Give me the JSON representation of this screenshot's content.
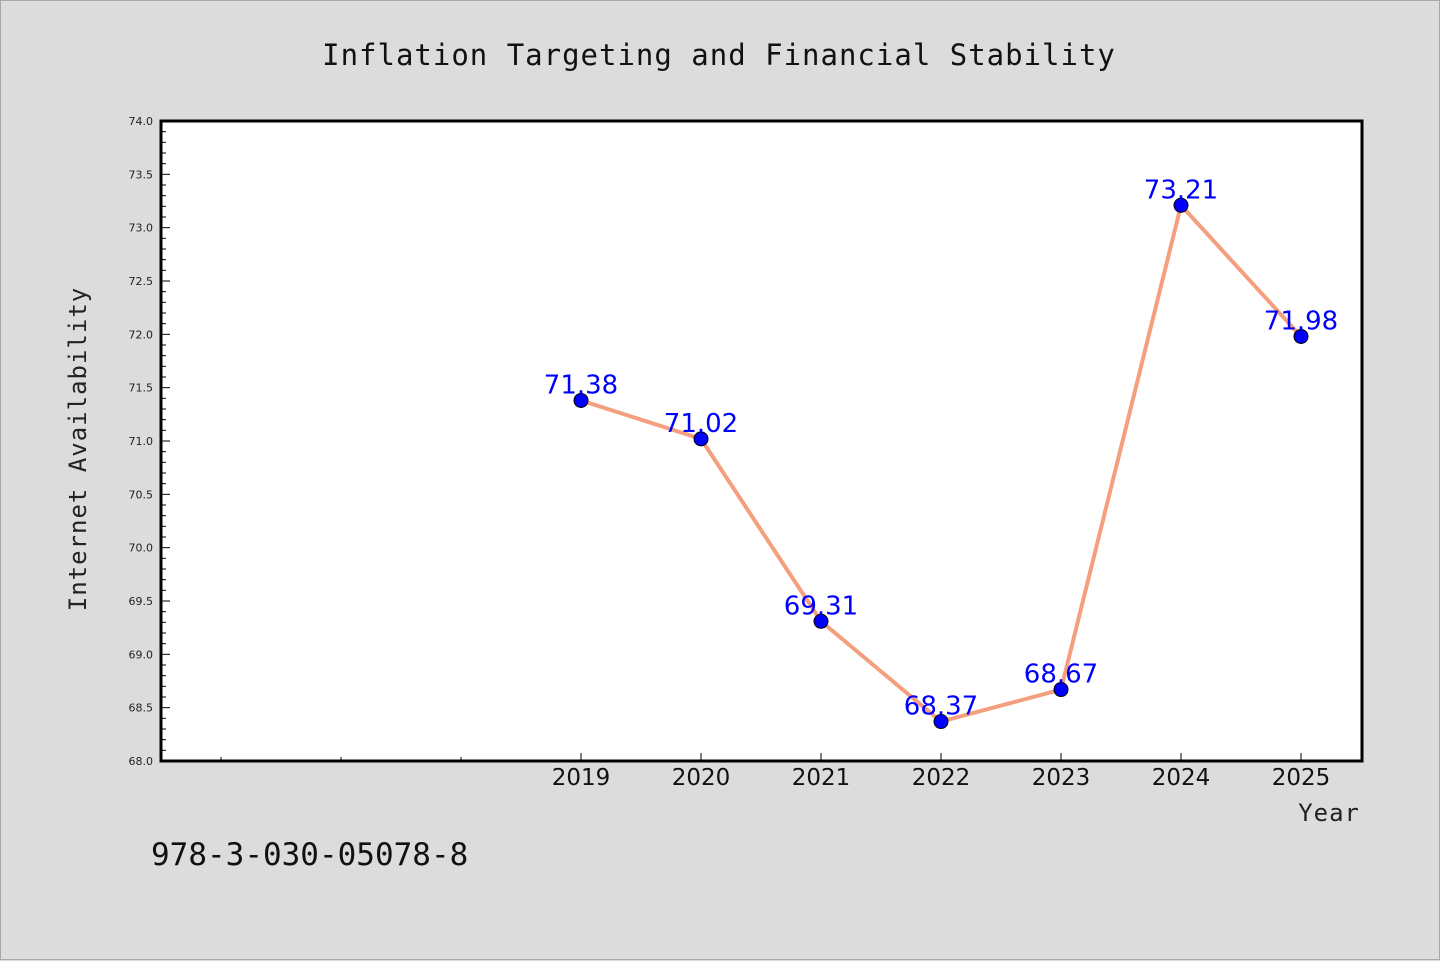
{
  "chart_data": {
    "type": "line",
    "title": "Inflation Targeting and Financial Stability",
    "xlabel": "Year",
    "ylabel": "Internet Availability",
    "x": [
      "2019",
      "2020",
      "2021",
      "2022",
      "2023",
      "2024",
      "2025"
    ],
    "series": [
      {
        "values": [
          71.38,
          71.02,
          69.31,
          68.37,
          68.67,
          73.21,
          71.98
        ],
        "data_labels": [
          "71.38",
          "71.02",
          "69.31",
          "68.37",
          "68.67",
          "73.21",
          "71.98"
        ]
      }
    ],
    "ylim": [
      68.0,
      74.0
    ],
    "yticks": [
      "68.0",
      "68.5",
      "69.0",
      "69.5",
      "70.0",
      "70.5",
      "71.0",
      "71.5",
      "72.0",
      "72.5",
      "73.0",
      "73.5",
      "74.0"
    ],
    "grid": false,
    "colors": {
      "line": "#f4a07e",
      "marker": "#0000ff",
      "label": "#0000ff",
      "background": "#dcdcdc",
      "plot_background": "#ffffff"
    }
  },
  "footer": {
    "isbn": "978-3-030-05078-8"
  }
}
